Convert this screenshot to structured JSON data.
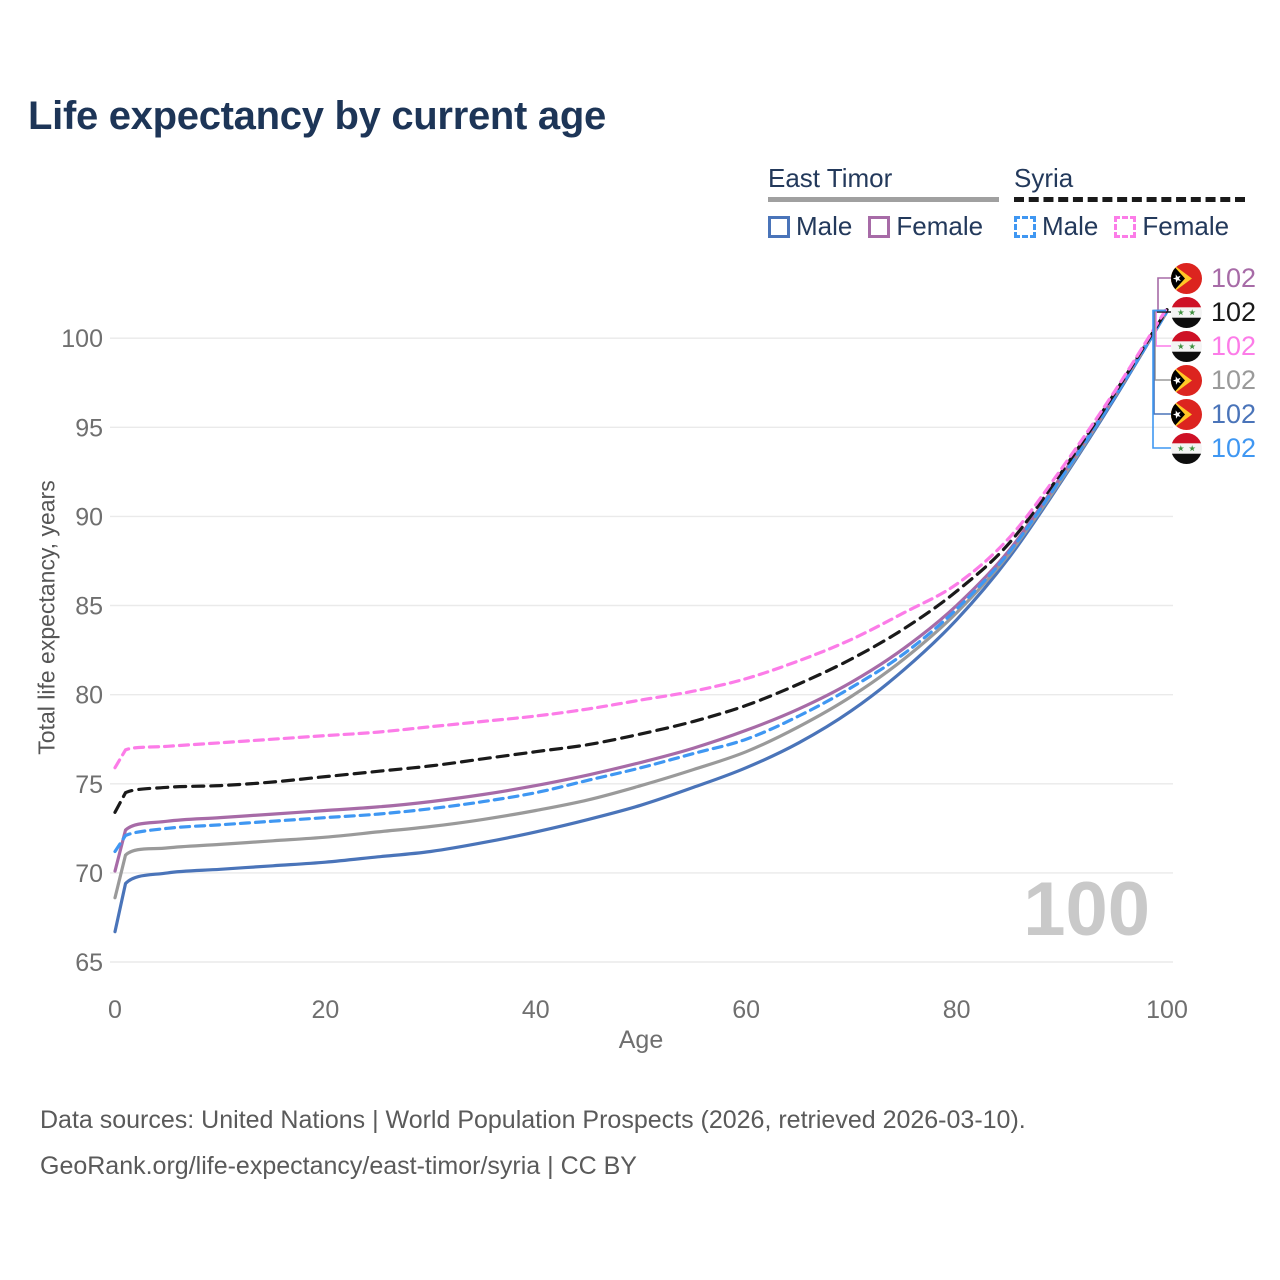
{
  "title": "Life expectancy by current age",
  "legend": {
    "groups": [
      {
        "label": "East Timor",
        "line_style": "solid",
        "underline_color": "#a0a0a0",
        "items": [
          {
            "label": "Male",
            "color": "#4a74b9"
          },
          {
            "label": "Female",
            "color": "#a76ba7"
          }
        ]
      },
      {
        "label": "Syria",
        "line_style": "dashed",
        "underline_color": "#1a1a1a",
        "items": [
          {
            "label": "Male",
            "color": "#3f97f2"
          },
          {
            "label": "Female",
            "color": "#fc7ce8"
          }
        ]
      }
    ]
  },
  "right_labels": [
    {
      "series": "East Timor Female",
      "flag": "east-timor",
      "value": "102",
      "color": "#a76ba7"
    },
    {
      "series": "Syria Both sexes",
      "flag": "syria",
      "value": "102",
      "color": "#1a1a1a"
    },
    {
      "series": "Syria Female",
      "flag": "syria",
      "value": "102",
      "color": "#fc7ce8"
    },
    {
      "series": "East Timor Both sexes",
      "flag": "east-timor",
      "value": "102",
      "color": "#9a9a9a"
    },
    {
      "series": "East Timor Male",
      "flag": "east-timor",
      "value": "102",
      "color": "#4a74b9"
    },
    {
      "series": "Syria Male",
      "flag": "syria",
      "value": "102",
      "color": "#3f97f2"
    }
  ],
  "watermark": "100",
  "footer": {
    "line1": "Data sources: United Nations | World Population Prospects (2026, retrieved 2026-03-10).",
    "line2": "GeoRank.org/life-expectancy/east-timor/syria | CC BY"
  },
  "chart_data": {
    "type": "line",
    "title": "Life expectancy by current age",
    "xlabel": "Age",
    "ylabel": "Total life expectancy, years",
    "xlim": [
      0,
      100
    ],
    "ylim": [
      65,
      102
    ],
    "xticks": [
      0,
      20,
      40,
      60,
      80,
      100
    ],
    "yticks": [
      65,
      70,
      75,
      80,
      85,
      90,
      95,
      100
    ],
    "grid": "horizontal",
    "legend_position": "top-right",
    "ages": [
      0,
      1,
      5,
      10,
      15,
      20,
      25,
      30,
      35,
      40,
      45,
      50,
      55,
      60,
      65,
      70,
      75,
      80,
      85,
      90,
      95,
      100
    ],
    "series": [
      {
        "id": "east-timor-male",
        "name": "East Timor Male",
        "color": "#4a74b9",
        "dash": false,
        "values": [
          66.7,
          69.4,
          70.0,
          70.2,
          70.4,
          70.6,
          70.9,
          71.2,
          71.7,
          72.3,
          73.0,
          73.8,
          74.8,
          75.9,
          77.3,
          79.1,
          81.4,
          84.2,
          87.7,
          92.0,
          96.6,
          101.5
        ]
      },
      {
        "id": "east-timor-both",
        "name": "East Timor Both sexes",
        "color": "#9a9a9a",
        "dash": false,
        "values": [
          68.6,
          71.0,
          71.4,
          71.6,
          71.8,
          72.0,
          72.3,
          72.6,
          73.0,
          73.5,
          74.1,
          74.9,
          75.8,
          76.8,
          78.2,
          79.9,
          82.0,
          84.6,
          87.9,
          92.1,
          96.7,
          101.5
        ]
      },
      {
        "id": "east-timor-female",
        "name": "East Timor Female",
        "color": "#a76ba7",
        "dash": false,
        "values": [
          70.1,
          72.4,
          72.9,
          73.1,
          73.3,
          73.5,
          73.7,
          74.0,
          74.4,
          74.9,
          75.5,
          76.2,
          77.0,
          78.0,
          79.2,
          80.7,
          82.6,
          85.0,
          88.1,
          92.3,
          96.8,
          101.6
        ]
      },
      {
        "id": "syria-male",
        "name": "Syria Male",
        "color": "#3f97f2",
        "dash": true,
        "values": [
          71.2,
          72.1,
          72.5,
          72.7,
          72.9,
          73.1,
          73.3,
          73.6,
          74.0,
          74.5,
          75.2,
          75.9,
          76.7,
          77.5,
          78.8,
          80.4,
          82.3,
          84.8,
          88.0,
          92.2,
          96.7,
          101.5
        ]
      },
      {
        "id": "syria-both",
        "name": "Syria Both sexes",
        "color": "#1a1a1a",
        "dash": true,
        "values": [
          73.4,
          74.5,
          74.8,
          74.9,
          75.1,
          75.4,
          75.7,
          76.0,
          76.4,
          76.8,
          77.2,
          77.8,
          78.5,
          79.4,
          80.6,
          82.0,
          83.7,
          85.8,
          88.5,
          92.5,
          96.9,
          101.6
        ]
      },
      {
        "id": "syria-female",
        "name": "Syria Female",
        "color": "#fc7ce8",
        "dash": true,
        "values": [
          75.9,
          76.9,
          77.1,
          77.3,
          77.5,
          77.7,
          77.9,
          78.2,
          78.5,
          78.8,
          79.2,
          79.7,
          80.2,
          80.9,
          81.9,
          83.1,
          84.6,
          86.2,
          88.8,
          92.7,
          97.0,
          101.7
        ]
      }
    ]
  }
}
